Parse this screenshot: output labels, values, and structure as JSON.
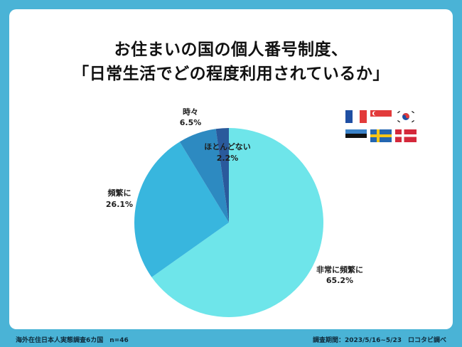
{
  "title_line1": "お住まいの国の個人番号制度、",
  "title_line2": "「日常生活でどの程度利用されているか」",
  "chart_data": {
    "type": "pie",
    "title": "お住まいの国の個人番号制度、「日常生活でどの程度利用されているか」",
    "slices": [
      {
        "label": "非常に頻繁に",
        "value": 65.2,
        "display": "65.2%",
        "color": "#6ee5ea"
      },
      {
        "label": "頻繁に",
        "value": 26.1,
        "display": "26.1%",
        "color": "#38b6de"
      },
      {
        "label": "時々",
        "value": 6.5,
        "display": "6.5%",
        "color": "#2d8ac1"
      },
      {
        "label": "ほとんどない",
        "value": 2.2,
        "display": "2.2%",
        "color": "#2a5a9c"
      }
    ]
  },
  "flags": [
    "france-flag",
    "singapore-flag",
    "korea-flag",
    "estonia-flag",
    "sweden-flag",
    "denmark-flag"
  ],
  "footer_left": "海外在住日本人実態調査6カ国　n=46",
  "footer_right": "調査期間：2023/5/16~5/23　ロコタビ調べ"
}
